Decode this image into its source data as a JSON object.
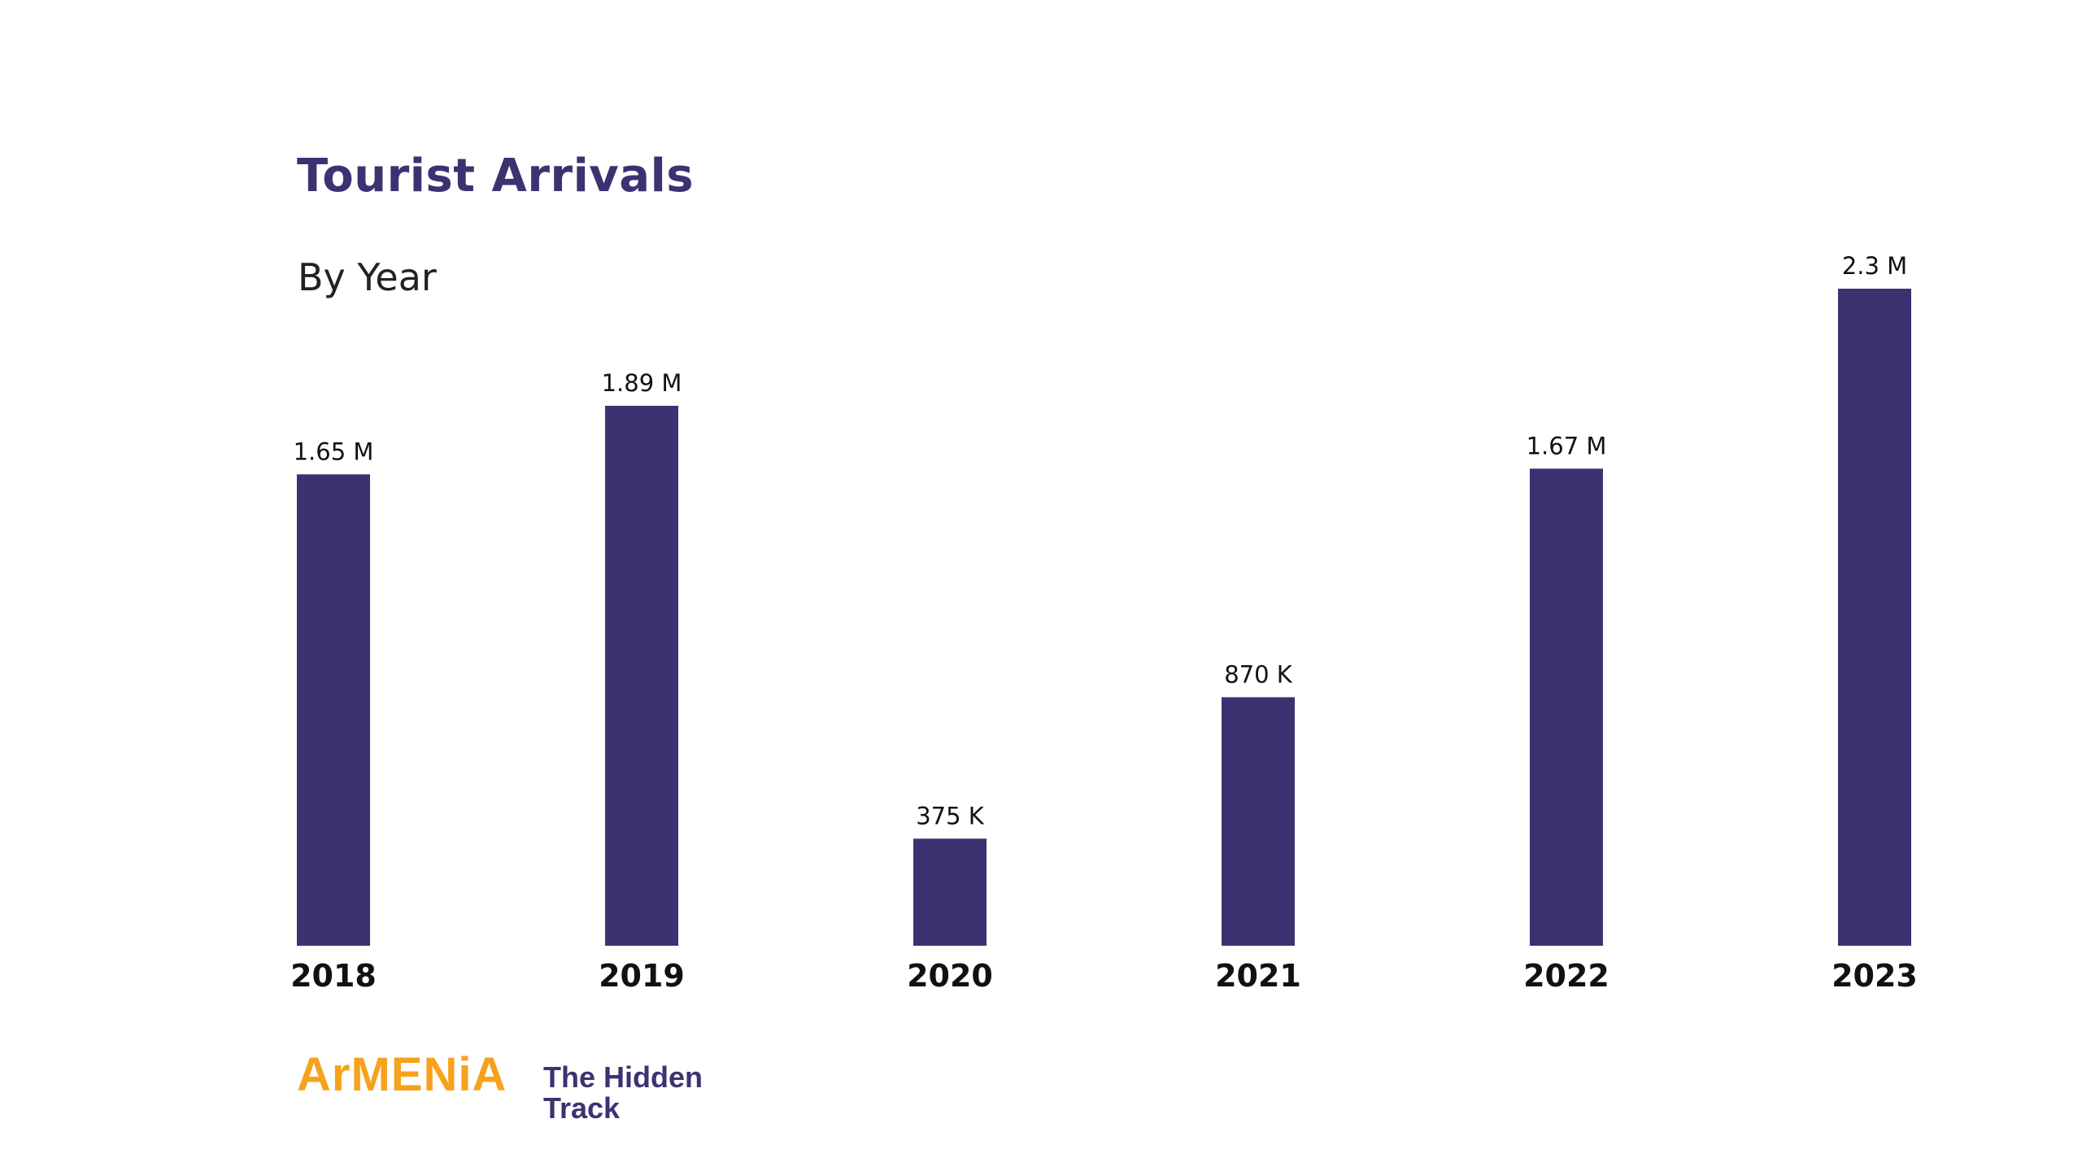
{
  "title": "Tourist Arrivals",
  "subtitle": "By Year",
  "colors": {
    "bar": "#3d3271",
    "title": "#3d3271",
    "label": "#111111",
    "brand_orange": "#f7a21b",
    "brand_purple": "#3d3271"
  },
  "chart_data": {
    "type": "bar",
    "title": "Tourist Arrivals",
    "subtitle": "By Year",
    "xlabel": "",
    "ylabel": "",
    "grid": false,
    "legend": "none",
    "ylim": [
      0,
      2.3
    ],
    "categories": [
      "2018",
      "2019",
      "2020",
      "2021",
      "2022",
      "2023"
    ],
    "values": [
      1.65,
      1.89,
      0.375,
      0.87,
      1.67,
      2.3
    ],
    "data_labels": [
      "1.65 M",
      "1.89 M",
      "375 K",
      "870 K",
      "1.67 M",
      "2.3 M"
    ],
    "unit": "millions"
  },
  "brand": {
    "name": "ArMENiA",
    "tagline": "The Hidden Track"
  }
}
